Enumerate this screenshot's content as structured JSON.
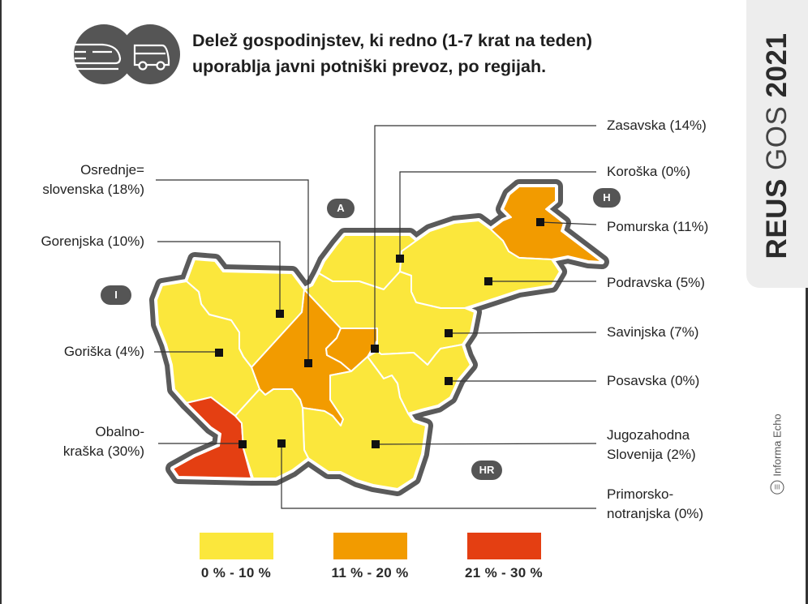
{
  "title": {
    "lines": [
      "Delež gospodinjstev, ki redno (1-7 krat na teden)",
      "uporablja javni potniški prevoz, po regijah."
    ],
    "icons": [
      "train-icon",
      "bus-icon"
    ]
  },
  "brand": {
    "part1": "REUS",
    "part2": "GOS",
    "part3": "2021"
  },
  "publisher": {
    "name": "Informa Echo",
    "logo_text": "III"
  },
  "colors": {
    "low": "#fbe73c",
    "mid": "#f29b00",
    "high": "#e43f12",
    "outline": "#5a5a5a",
    "badge": "#555555"
  },
  "regions": [
    {
      "name": "Osrednjeslovenska",
      "value": 18,
      "category": "mid",
      "label_lines": [
        "Osrednje=",
        "slovenska (18%)"
      ]
    },
    {
      "name": "Gorenjska",
      "value": 10,
      "category": "low",
      "label_lines": [
        "Gorenjska (10%)"
      ]
    },
    {
      "name": "Goriška",
      "value": 4,
      "category": "low",
      "label_lines": [
        "Goriška (4%)"
      ]
    },
    {
      "name": "Obalno-kraška",
      "value": 30,
      "category": "high",
      "label_lines": [
        "Obalno-",
        "kraška (30%)"
      ]
    },
    {
      "name": "Zasavska",
      "value": 14,
      "category": "mid",
      "label_lines": [
        "Zasavska (14%)"
      ]
    },
    {
      "name": "Koroška",
      "value": 0,
      "category": "low",
      "label_lines": [
        "Koroška (0%)"
      ]
    },
    {
      "name": "Pomurska",
      "value": 11,
      "category": "mid",
      "label_lines": [
        "Pomurska (11%)"
      ]
    },
    {
      "name": "Podravska",
      "value": 5,
      "category": "low",
      "label_lines": [
        "Podravska (5%)"
      ]
    },
    {
      "name": "Savinjska",
      "value": 7,
      "category": "low",
      "label_lines": [
        "Savinjska (7%)"
      ]
    },
    {
      "name": "Posavska",
      "value": 0,
      "category": "low",
      "label_lines": [
        "Posavska (0%)"
      ]
    },
    {
      "name": "Jugozahodna Slovenija",
      "value": 2,
      "category": "low",
      "label_lines": [
        "Jugozahodna",
        "Slovenija (2%)"
      ]
    },
    {
      "name": "Primorsko-notranjska",
      "value": 0,
      "category": "low",
      "label_lines": [
        "Primorsko-",
        "notranjska (0%)"
      ]
    }
  ],
  "neighbours": [
    "A",
    "H",
    "I",
    "HR"
  ],
  "legend": [
    {
      "label": "0 % - 10 %",
      "category": "low"
    },
    {
      "label": "11 % - 20 %",
      "category": "mid"
    },
    {
      "label": "21 % - 30 %",
      "category": "high"
    }
  ]
}
